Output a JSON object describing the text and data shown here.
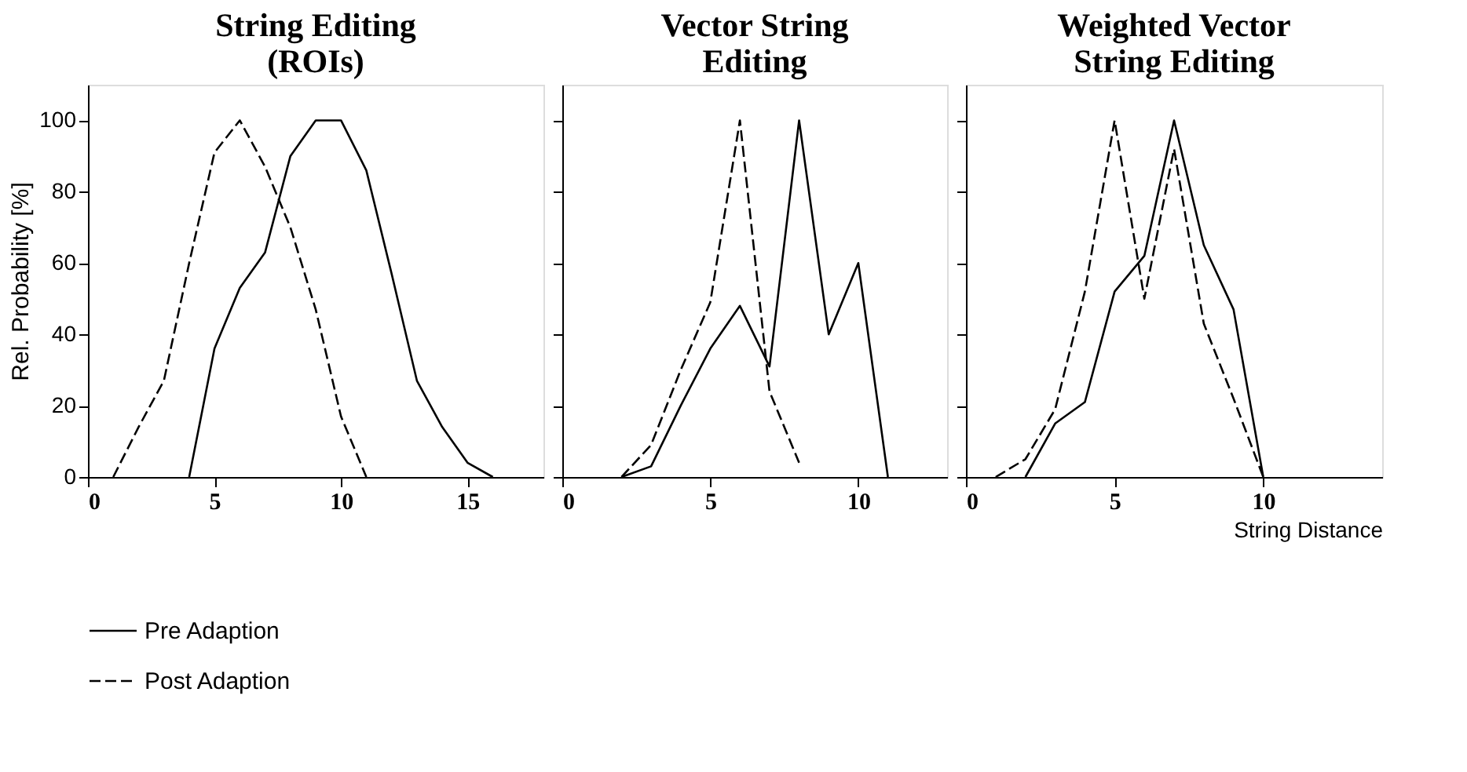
{
  "chart_data": [
    {
      "type": "line",
      "title": "String Editing\n(ROIs)",
      "ylabel": "Rel. Probability [%]",
      "xlim": [
        0,
        18
      ],
      "xticks": [
        0,
        5,
        10,
        15
      ],
      "ylim": [
        0,
        110
      ],
      "yticks": [
        0,
        20,
        40,
        60,
        80,
        100
      ],
      "grid": false,
      "marker": "none",
      "legend": "bottom",
      "series": [
        {
          "name": "Pre Adaption",
          "color": "#000000",
          "line_style": "solid",
          "x": [
            4,
            5,
            6,
            7,
            8,
            9,
            10,
            11,
            12,
            13,
            14,
            15,
            16
          ],
          "values": [
            0,
            36,
            53,
            63,
            90,
            100,
            100,
            86,
            57,
            27,
            14,
            4,
            0
          ]
        },
        {
          "name": "Post Adaption",
          "color": "#000000",
          "line_style": "dashed",
          "x": [
            1,
            2,
            3,
            4,
            5,
            6,
            7,
            8,
            9,
            10,
            11
          ],
          "values": [
            0,
            14,
            27,
            60,
            91,
            100,
            87,
            70,
            47,
            17,
            0
          ]
        }
      ]
    },
    {
      "type": "line",
      "title": "Vector String\nEditing",
      "xlim": [
        0,
        13
      ],
      "xticks": [
        0,
        5,
        10
      ],
      "ylim": [
        0,
        110
      ],
      "yticks": [
        0,
        20,
        40,
        60,
        80,
        100
      ],
      "grid": false,
      "marker": "none",
      "tick_labels": "x",
      "series": [
        {
          "color": "#000000",
          "line_style": "solid",
          "x": [
            2,
            3,
            4,
            5,
            6,
            7,
            8,
            9,
            10,
            11
          ],
          "values": [
            0,
            3,
            20,
            36,
            48,
            31,
            100,
            40,
            60,
            0
          ]
        },
        {
          "color": "#000000",
          "line_style": "dashed",
          "x": [
            2,
            3,
            4,
            5,
            6,
            7,
            8
          ],
          "values": [
            0,
            9,
            30,
            49,
            100,
            24,
            4
          ]
        }
      ]
    },
    {
      "type": "line",
      "title": "Weighted Vector\nString Editing",
      "xlabel": "String Distance",
      "xlim": [
        0,
        14
      ],
      "xticks": [
        0,
        5,
        10
      ],
      "ylim": [
        0,
        110
      ],
      "yticks": [
        0,
        20,
        40,
        60,
        80,
        100
      ],
      "grid": false,
      "marker": "none",
      "tick_labels": "x",
      "series": [
        {
          "color": "#000000",
          "line_style": "solid",
          "x": [
            2,
            3,
            4,
            5,
            6,
            7,
            8,
            9,
            10
          ],
          "values": [
            0,
            15,
            21,
            52,
            62,
            100,
            65,
            47,
            0
          ]
        },
        {
          "color": "#000000",
          "line_style": "dashed",
          "x": [
            1,
            2,
            3,
            4,
            5,
            6,
            7,
            8,
            9,
            10
          ],
          "values": [
            0,
            5,
            19,
            52,
            100,
            50,
            92,
            43,
            22,
            0
          ]
        }
      ]
    }
  ]
}
